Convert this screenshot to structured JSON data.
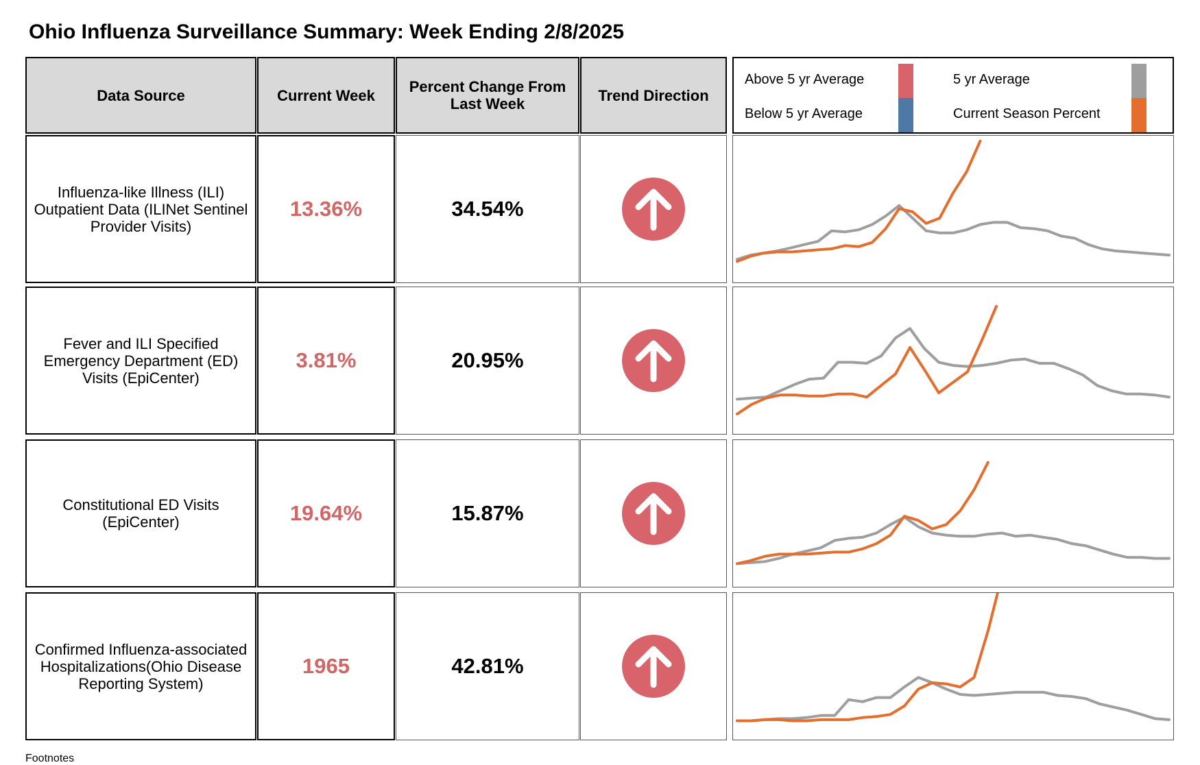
{
  "title": "Ohio Influenza Surveillance Summary: Week Ending 2/8/2025",
  "headers": {
    "data_source": "Data Source",
    "current_week": "Current Week",
    "percent_change": "Percent Change From Last Week",
    "trend_direction": "Trend Direction"
  },
  "legend": {
    "above": "Above 5 yr Average",
    "below": "Below 5 yr Average",
    "five_yr": "5 yr Average",
    "current": "Current Season Percent",
    "colors": {
      "above": "#d9636a",
      "below": "#4e79a7",
      "five_yr": "#9e9e9e",
      "current": "#e46e2e"
    }
  },
  "rows": [
    {
      "source": "Influenza-like Illness (ILI) Outpatient Data (ILINet Sentinel Provider Visits)",
      "current_week": "13.36%",
      "percent_change": "34.54%",
      "trend": "up",
      "trend_icon": "arrow-up-icon"
    },
    {
      "source": "Fever and ILI Specified Emergency Department (ED) Visits (EpiCenter)",
      "current_week": "3.81%",
      "percent_change": "20.95%",
      "trend": "up",
      "trend_icon": "arrow-up-icon"
    },
    {
      "source": "Constitutional ED Visits (EpiCenter)",
      "current_week": "19.64%",
      "percent_change": "15.87%",
      "trend": "up",
      "trend_icon": "arrow-up-icon"
    },
    {
      "source": "Confirmed Influenza-associated Hospitalizations(Ohio Disease Reporting System)",
      "current_week": "1965",
      "percent_change": "42.81%",
      "trend": "up",
      "trend_icon": "arrow-up-icon"
    }
  ],
  "chart_data": [
    {
      "type": "line",
      "ylim": [
        0,
        100
      ],
      "series": [
        {
          "values": [
            5,
            9,
            11,
            13,
            16,
            19,
            22,
            32,
            31,
            33,
            38,
            46,
            56,
            44,
            32,
            30,
            30,
            33,
            38,
            40,
            40,
            35,
            34,
            32,
            27,
            25,
            19,
            15,
            13,
            12,
            11,
            10,
            9
          ]
        },
        {
          "values": [
            3,
            8,
            11,
            12,
            12,
            13,
            14,
            15,
            18,
            17,
            21,
            34,
            53,
            50,
            39,
            44,
            68,
            88,
            117
          ]
        }
      ]
    },
    {
      "type": "line",
      "ylim": [
        0,
        100
      ],
      "series": [
        {
          "values": [
            16,
            17,
            18,
            24,
            30,
            35,
            36,
            51,
            51,
            50,
            57,
            74,
            83,
            64,
            51,
            48,
            47,
            48,
            50,
            53,
            54,
            50,
            50,
            45,
            39,
            29,
            24,
            21,
            21,
            20,
            18
          ]
        },
        {
          "values": [
            2,
            11,
            17,
            20,
            20,
            19,
            19,
            21,
            21,
            18,
            29,
            40,
            65,
            44,
            22,
            32,
            42,
            72,
            104
          ]
        }
      ]
    },
    {
      "type": "line",
      "ylim": [
        0,
        100
      ],
      "series": [
        {
          "values": [
            5,
            6,
            7,
            10,
            14,
            17,
            20,
            27,
            29,
            30,
            34,
            42,
            49,
            40,
            34,
            32,
            31,
            31,
            33,
            34,
            31,
            32,
            30,
            28,
            24,
            22,
            18,
            14,
            11,
            11,
            10,
            10
          ]
        },
        {
          "values": [
            5,
            8,
            12,
            14,
            14,
            14,
            15,
            16,
            16,
            19,
            24,
            32,
            50,
            46,
            38,
            42,
            55,
            75,
            101
          ]
        }
      ]
    },
    {
      "type": "line",
      "ylim": [
        0,
        100
      ],
      "series": [
        {
          "values": [
            1,
            1,
            2,
            3,
            3,
            4,
            6,
            6,
            21,
            19,
            23,
            23,
            33,
            42,
            37,
            31,
            26,
            25,
            26,
            27,
            28,
            28,
            28,
            25,
            24,
            22,
            17,
            14,
            11,
            7,
            3,
            2
          ]
        },
        {
          "values": [
            1,
            1,
            2,
            2,
            1,
            1,
            2,
            2,
            2,
            4,
            5,
            7,
            15,
            31,
            37,
            36,
            33,
            42,
            86,
            138
          ]
        }
      ]
    }
  ],
  "footnote": "Footnotes"
}
